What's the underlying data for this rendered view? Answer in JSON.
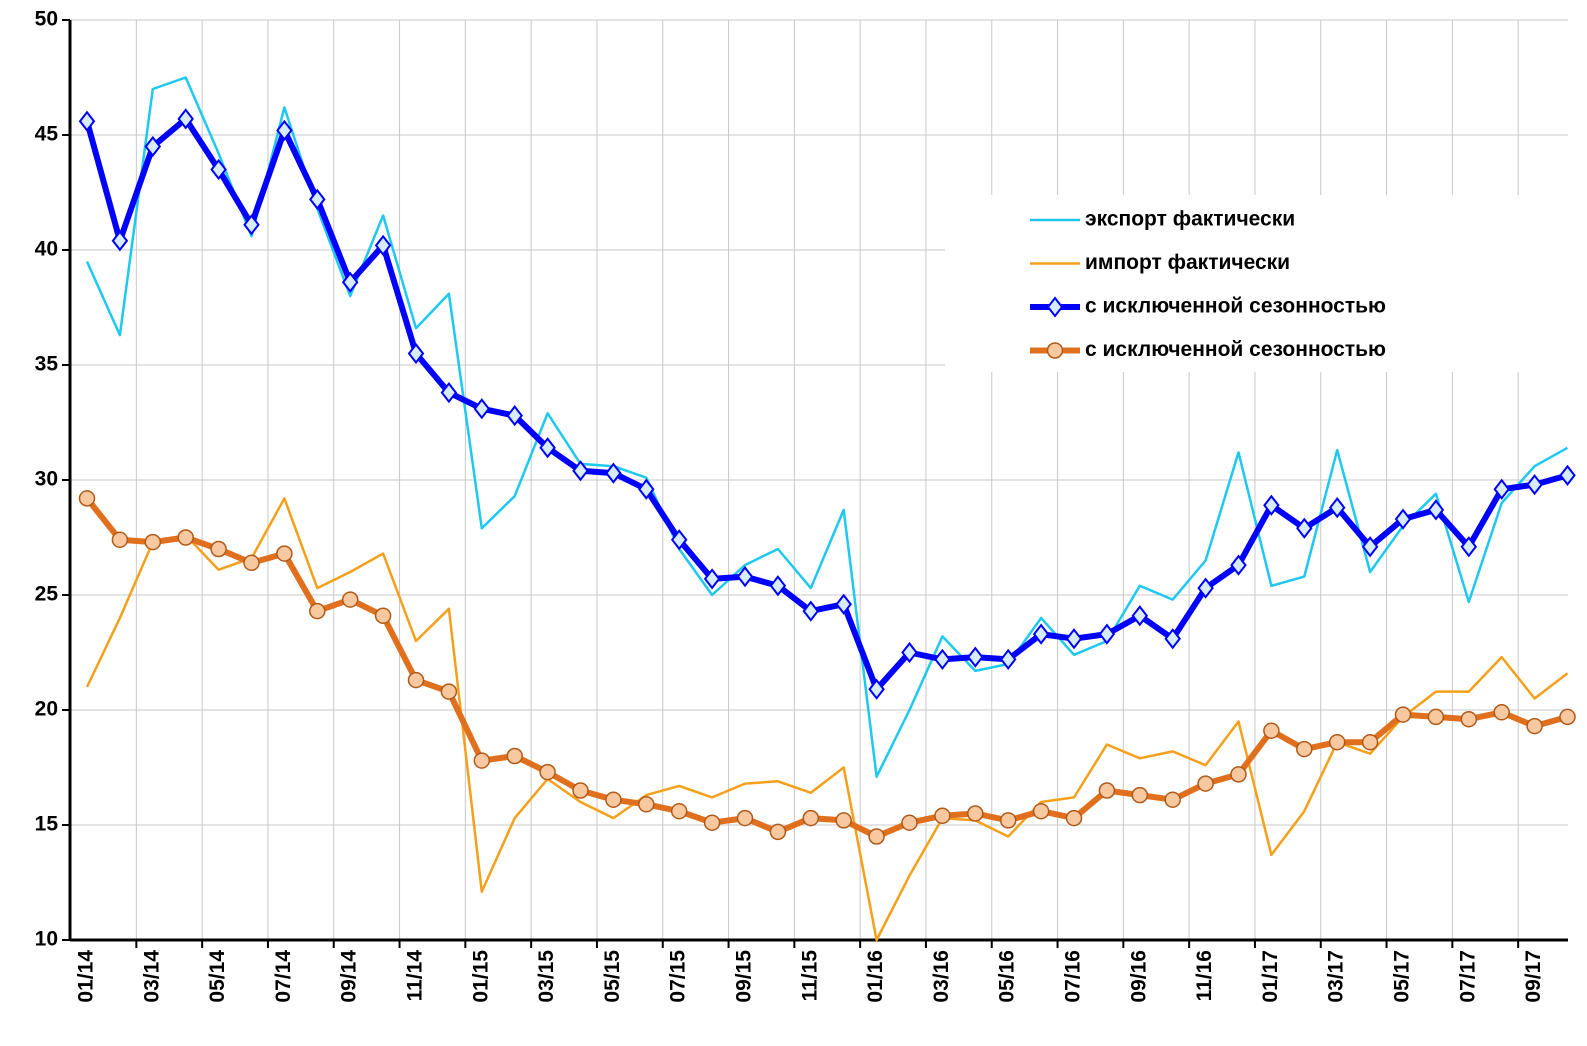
{
  "chart_data": {
    "type": "line",
    "categories": [
      "01/14",
      null,
      "03/14",
      null,
      "05/14",
      null,
      "07/14",
      null,
      "09/14",
      null,
      "11/14",
      null,
      "01/15",
      null,
      "03/15",
      null,
      "05/15",
      null,
      "07/15",
      null,
      "09/15",
      null,
      "11/15",
      null,
      "01/16",
      null,
      "03/16",
      null,
      "05/16",
      null,
      "07/16",
      null,
      "09/16",
      null,
      "11/16",
      null,
      "01/17",
      null,
      "03/17",
      null,
      "05/17",
      null,
      "07/17",
      null,
      "09/17",
      null
    ],
    "series": [
      {
        "name": "экспорт фактически",
        "color": "#1ec8f0",
        "marker": "none",
        "values": [
          39.5,
          36.3,
          47.0,
          47.5,
          44.2,
          40.6,
          46.2,
          41.8,
          38.0,
          41.5,
          36.6,
          38.1,
          27.9,
          29.3,
          32.9,
          30.7,
          30.6,
          30.1,
          27.0,
          25.0,
          26.3,
          27.0,
          25.3,
          28.7,
          17.1,
          20.0,
          23.2,
          21.7,
          22.0,
          24.0,
          22.4,
          23.0,
          25.4,
          24.8,
          26.5,
          31.2,
          25.4,
          25.8,
          31.3,
          26.0,
          28.0,
          29.4,
          24.7,
          29.0,
          30.6,
          31.4
        ]
      },
      {
        "name": "импорт фактически",
        "color": "#f5a01a",
        "marker": "none",
        "values": [
          21.0,
          24.0,
          27.3,
          27.6,
          26.1,
          26.6,
          29.2,
          25.3,
          26.0,
          26.8,
          23.0,
          24.4,
          12.1,
          15.3,
          17.0,
          16.0,
          15.3,
          16.3,
          16.7,
          16.2,
          16.8,
          16.9,
          16.4,
          17.5,
          10.0,
          12.8,
          15.3,
          15.2,
          14.5,
          16.0,
          16.2,
          18.5,
          17.9,
          18.2,
          17.6,
          19.5,
          13.7,
          15.6,
          18.6,
          18.1,
          19.7,
          20.8,
          20.8,
          22.3,
          20.5,
          21.6
        ]
      },
      {
        "name": "с исключенной сезонностью",
        "color": "#0000ff",
        "marker": "diamond",
        "values": [
          45.6,
          40.4,
          44.5,
          45.7,
          43.5,
          41.1,
          45.2,
          42.2,
          38.6,
          40.2,
          35.5,
          33.8,
          33.1,
          32.8,
          31.4,
          30.4,
          30.3,
          29.6,
          27.4,
          25.7,
          25.8,
          25.4,
          24.3,
          24.6,
          20.9,
          22.5,
          22.2,
          22.3,
          22.2,
          23.3,
          23.1,
          23.3,
          24.1,
          23.1,
          25.3,
          26.3,
          28.9,
          27.9,
          28.8,
          27.1,
          28.3,
          28.7,
          27.1,
          29.6,
          29.8,
          30.2
        ]
      },
      {
        "name": "с исключенной сезонностью",
        "color": "#e0701e",
        "marker": "circle",
        "values": [
          29.2,
          27.4,
          27.3,
          27.5,
          27.0,
          26.4,
          26.8,
          24.3,
          24.8,
          24.1,
          21.3,
          20.8,
          17.8,
          18.0,
          17.3,
          16.5,
          16.1,
          15.9,
          15.6,
          15.1,
          15.3,
          14.7,
          15.3,
          15.2,
          14.5,
          15.1,
          15.4,
          15.5,
          15.2,
          15.6,
          15.3,
          16.5,
          16.3,
          16.1,
          16.8,
          17.2,
          19.1,
          18.3,
          18.6,
          18.6,
          19.8,
          19.7,
          19.6,
          19.9,
          19.3,
          19.7
        ]
      }
    ],
    "ylim": [
      10,
      50
    ],
    "yticks": [
      10,
      15,
      20,
      25,
      30,
      35,
      40,
      45,
      50
    ],
    "grid": true
  }
}
